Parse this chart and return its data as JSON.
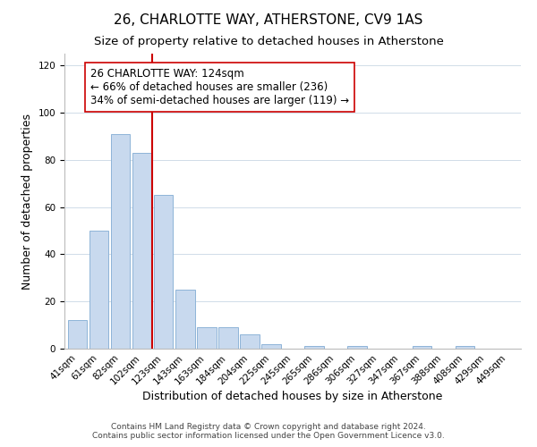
{
  "title": "26, CHARLOTTE WAY, ATHERSTONE, CV9 1AS",
  "subtitle": "Size of property relative to detached houses in Atherstone",
  "xlabel": "Distribution of detached houses by size in Atherstone",
  "ylabel": "Number of detached properties",
  "bar_labels": [
    "41sqm",
    "61sqm",
    "82sqm",
    "102sqm",
    "123sqm",
    "143sqm",
    "163sqm",
    "184sqm",
    "204sqm",
    "225sqm",
    "245sqm",
    "265sqm",
    "286sqm",
    "306sqm",
    "327sqm",
    "347sqm",
    "367sqm",
    "388sqm",
    "408sqm",
    "429sqm",
    "449sqm"
  ],
  "bar_heights": [
    12,
    50,
    91,
    83,
    65,
    25,
    9,
    9,
    6,
    2,
    0,
    1,
    0,
    1,
    0,
    0,
    1,
    0,
    1,
    0,
    0
  ],
  "bar_color": "#c8d9ee",
  "bar_edge_color": "#8eb4d8",
  "vline_color": "#cc0000",
  "annotation_text": "26 CHARLOTTE WAY: 124sqm\n← 66% of detached houses are smaller (236)\n34% of semi-detached houses are larger (119) →",
  "annotation_box_edge_color": "#cc0000",
  "annotation_box_facecolor": "#ffffff",
  "ylim": [
    0,
    125
  ],
  "yticks": [
    0,
    20,
    40,
    60,
    80,
    100,
    120
  ],
  "grid_color": "#d0dce8",
  "footer_line1": "Contains HM Land Registry data © Crown copyright and database right 2024.",
  "footer_line2": "Contains public sector information licensed under the Open Government Licence v3.0.",
  "title_fontsize": 11,
  "subtitle_fontsize": 9.5,
  "axis_label_fontsize": 9,
  "tick_fontsize": 7.5,
  "annotation_fontsize": 8.5,
  "footer_fontsize": 6.5
}
